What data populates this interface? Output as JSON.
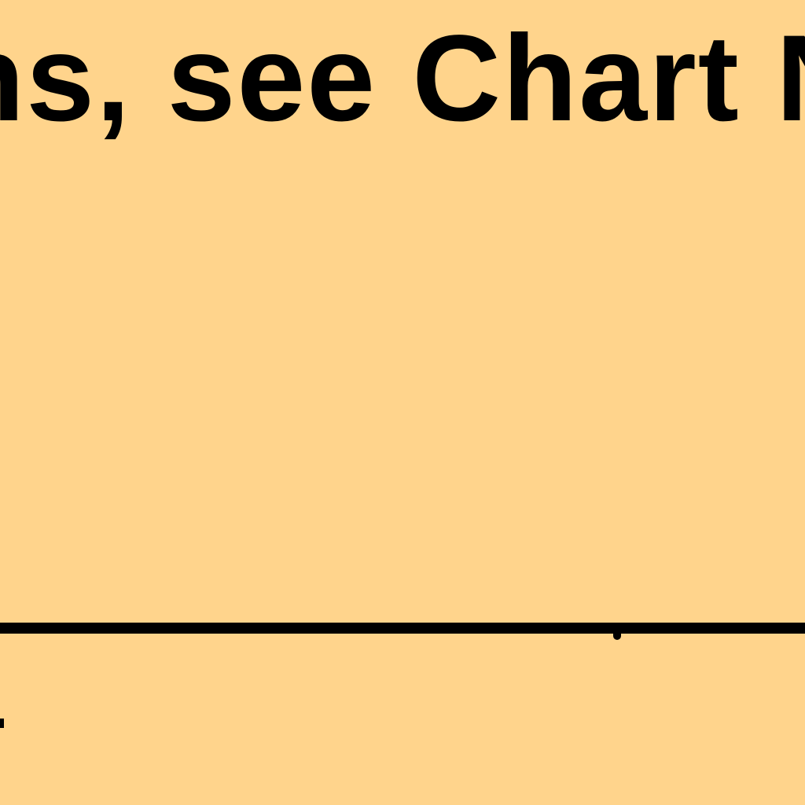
{
  "note": {
    "text": "ns, see Chart N"
  },
  "colors": {
    "paper": "#FFD48C",
    "ink": "#000000"
  }
}
